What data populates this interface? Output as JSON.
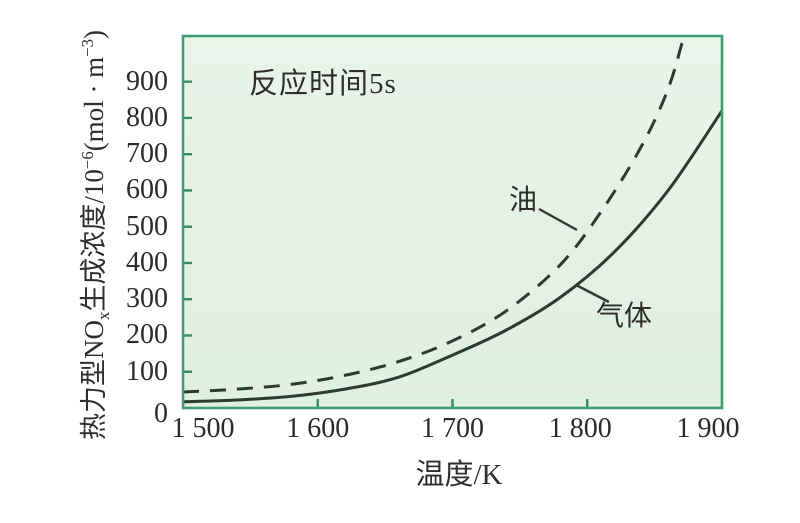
{
  "chart_data": {
    "type": "line",
    "title": "",
    "annotation": "反应时间5s",
    "xlabel": "温度/K",
    "ylabel": "热力型NOx生成浓度/10−6(mol · m−3)",
    "xlim": [
      1500,
      1900
    ],
    "ylim": [
      0,
      1026
    ],
    "x_tick_labels": [
      "1 500",
      "1 600",
      "1 700",
      "1 800",
      "1 900"
    ],
    "x_tick_values": [
      1500,
      1600,
      1700,
      1800,
      1900
    ],
    "x_marked_tick_values": [
      1600,
      1700,
      1800
    ],
    "y_tick_labels": [
      "0",
      "100",
      "200",
      "300",
      "400",
      "500",
      "600",
      "700",
      "800",
      "900"
    ],
    "y_tick_values": [
      0,
      100,
      200,
      300,
      400,
      500,
      600,
      700,
      800,
      900
    ],
    "grid": false,
    "legend_position": "inline-annotations",
    "series": [
      {
        "key": "oil",
        "name": "油",
        "line_style": "dashed",
        "x": [
          1500,
          1540,
          1580,
          1620,
          1660,
          1700,
          1740,
          1780,
          1810,
          1840,
          1860,
          1872
        ],
        "y": [
          44,
          52,
          65,
          90,
          128,
          185,
          268,
          395,
          540,
          720,
          880,
          1030
        ]
      },
      {
        "key": "gas",
        "name": "气体",
        "line_style": "solid",
        "x": [
          1500,
          1540,
          1580,
          1620,
          1660,
          1700,
          1740,
          1780,
          1820,
          1860,
          1900
        ],
        "y": [
          17,
          22,
          32,
          52,
          85,
          146,
          215,
          305,
          430,
          600,
          820
        ]
      }
    ]
  },
  "y_axis_label": {
    "pre": "热力型NO",
    "sub": "x",
    "mid": "生成浓度/10",
    "sup1": "−6",
    "unit_open": "(mol · m",
    "sup2": "−3",
    "unit_close": ")"
  },
  "colors": {
    "plot_fill_top": "#eaf5ea",
    "plot_fill_bottom": "#dfefe0",
    "frame_green": "#439b74",
    "tick_green": "#3b8a63",
    "curve_dark": "#2c3b31",
    "text": "#2b2b2b",
    "background": "#ffffff"
  }
}
